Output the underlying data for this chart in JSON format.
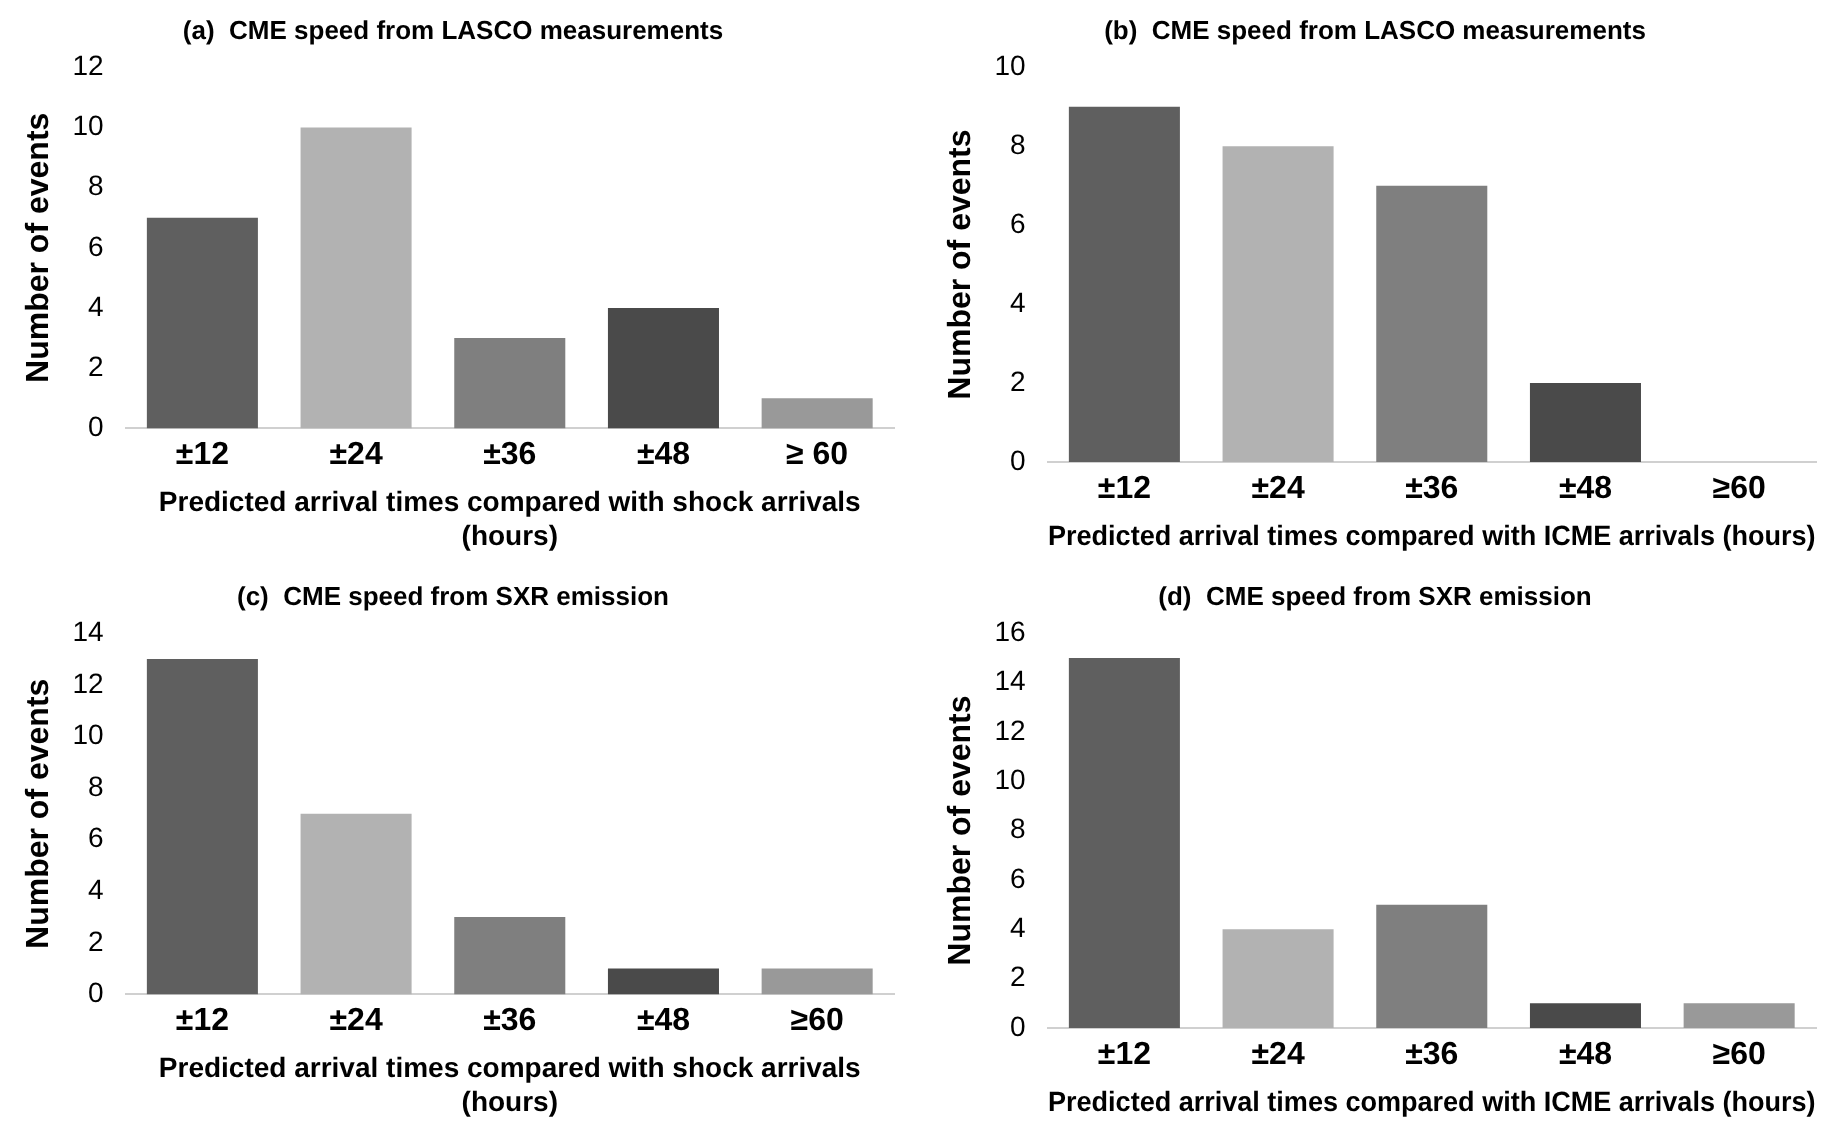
{
  "chart_data": [
    {
      "type": "bar",
      "title": "(a)  CME speed from LASCO measurements",
      "xlabel": "Predicted arrival times compared with shock arrivals (hours)",
      "ylabel": "Number of events",
      "categories": [
        "±12",
        "±24",
        "±36",
        "±48",
        "≥ 60"
      ],
      "values": [
        7,
        10,
        3,
        4,
        1
      ],
      "colors": [
        "#5f5f5f",
        "#b2b2b2",
        "#7f7f7f",
        "#4a4a4a",
        "#999999"
      ],
      "ylim": [
        0,
        12
      ],
      "yticks": [
        0,
        2,
        4,
        6,
        8,
        10,
        12
      ],
      "grid": false,
      "legend": false
    },
    {
      "type": "bar",
      "title": "(b)  CME speed from LASCO measurements",
      "xlabel": "Predicted arrival times compared with ICME arrivals (hours)",
      "ylabel": "Number of events",
      "categories": [
        "±12",
        "±24",
        "±36",
        "±48",
        "≥60"
      ],
      "values": [
        9,
        8,
        7,
        2,
        0
      ],
      "colors": [
        "#5f5f5f",
        "#b2b2b2",
        "#7f7f7f",
        "#4a4a4a",
        "#999999"
      ],
      "ylim": [
        0,
        10
      ],
      "yticks": [
        0,
        2,
        4,
        6,
        8,
        10
      ],
      "grid": false,
      "legend": false
    },
    {
      "type": "bar",
      "title": "(c)  CME speed from SXR emission",
      "xlabel": "Predicted arrival times compared with shock arrivals (hours)",
      "ylabel": "Number of events",
      "categories": [
        "±12",
        "±24",
        "±36",
        "±48",
        "≥60"
      ],
      "values": [
        13,
        7,
        3,
        1,
        1
      ],
      "colors": [
        "#5f5f5f",
        "#b2b2b2",
        "#7f7f7f",
        "#4a4a4a",
        "#999999"
      ],
      "ylim": [
        0,
        14
      ],
      "yticks": [
        0,
        2,
        4,
        6,
        8,
        10,
        12,
        14
      ],
      "grid": false,
      "legend": false
    },
    {
      "type": "bar",
      "title": "(d)  CME speed from SXR emission",
      "xlabel": "Predicted arrival times compared with ICME arrivals (hours)",
      "ylabel": "Number of events",
      "categories": [
        "±12",
        "±24",
        "±36",
        "±48",
        "≥60"
      ],
      "values": [
        15,
        4,
        5,
        1,
        1
      ],
      "colors": [
        "#5f5f5f",
        "#b2b2b2",
        "#7f7f7f",
        "#4a4a4a",
        "#999999"
      ],
      "ylim": [
        0,
        16
      ],
      "yticks": [
        0,
        2,
        4,
        6,
        8,
        10,
        12,
        14,
        16
      ],
      "grid": false,
      "legend": false
    }
  ]
}
